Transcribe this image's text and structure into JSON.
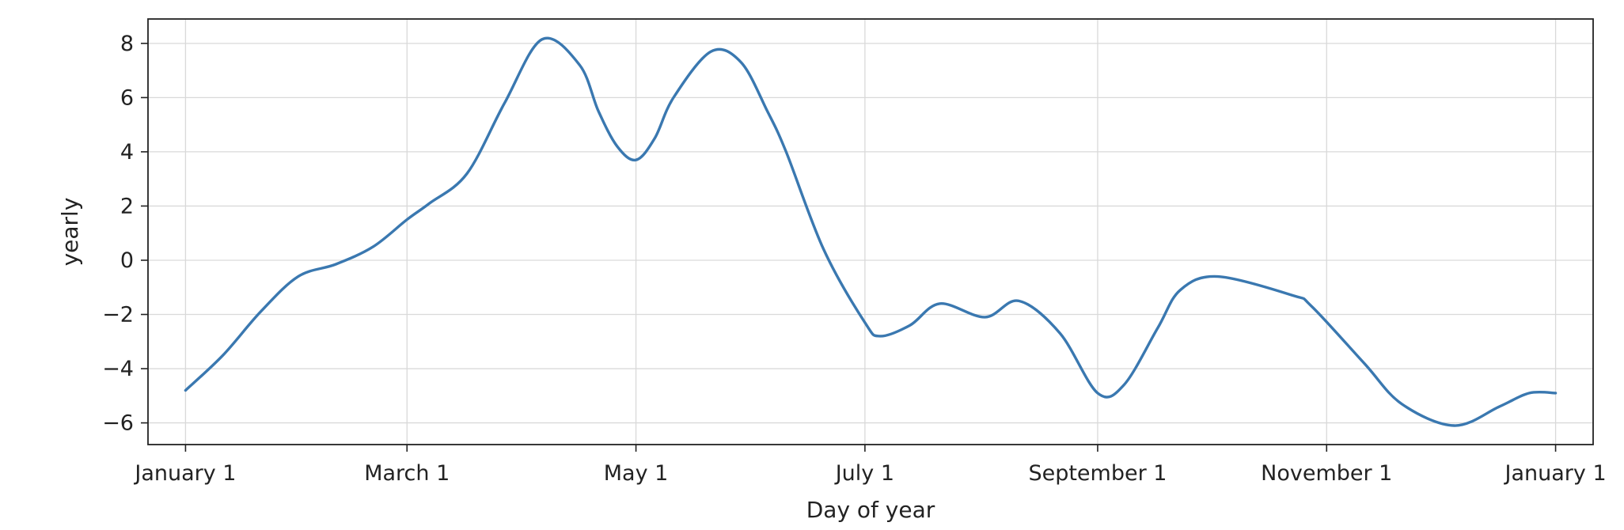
{
  "chart_data": {
    "type": "line",
    "title": "",
    "xlabel": "Day of year",
    "ylabel": "yearly",
    "grid": true,
    "line_color": "#3a78b0",
    "xlim": [
      -10,
      375
    ],
    "ylim": [
      -6.8,
      8.9
    ],
    "x_ticks": [
      {
        "value": 0,
        "label": "January 1"
      },
      {
        "value": 59,
        "label": "March 1"
      },
      {
        "value": 120,
        "label": "May 1"
      },
      {
        "value": 181,
        "label": "July 1"
      },
      {
        "value": 243,
        "label": "September 1"
      },
      {
        "value": 304,
        "label": "November 1"
      },
      {
        "value": 365,
        "label": "January 1"
      }
    ],
    "y_ticks": [
      {
        "value": 8,
        "label": "8"
      },
      {
        "value": 6,
        "label": "6"
      },
      {
        "value": 4,
        "label": "4"
      },
      {
        "value": 2,
        "label": "2"
      },
      {
        "value": 0,
        "label": "0"
      },
      {
        "value": -2,
        "label": "−2"
      },
      {
        "value": -4,
        "label": "−4"
      },
      {
        "value": -6,
        "label": "−6"
      }
    ],
    "series": [
      {
        "x": [
          0,
          10,
          20,
          30,
          40,
          50,
          59,
          65,
          75,
          85,
          95,
          105,
          110,
          115,
          120,
          125,
          130,
          140,
          148,
          155,
          160,
          170,
          181,
          185,
          193,
          201,
          213,
          222,
          233,
          243,
          250,
          259,
          265,
          275,
          295,
          300,
          314,
          324,
          338,
          350,
          358,
          365
        ],
        "y": [
          -4.8,
          -3.5,
          -1.9,
          -0.6,
          -0.15,
          0.5,
          1.5,
          2.1,
          3.2,
          5.8,
          8.15,
          7.2,
          5.5,
          4.2,
          3.7,
          4.5,
          6.0,
          7.7,
          7.3,
          5.5,
          4.0,
          0.4,
          -2.3,
          -2.8,
          -2.4,
          -1.6,
          -2.1,
          -1.5,
          -2.7,
          -4.9,
          -4.6,
          -2.5,
          -1.1,
          -0.6,
          -1.3,
          -1.7,
          -3.8,
          -5.3,
          -6.1,
          -5.4,
          -4.9,
          -4.9
        ]
      }
    ]
  }
}
